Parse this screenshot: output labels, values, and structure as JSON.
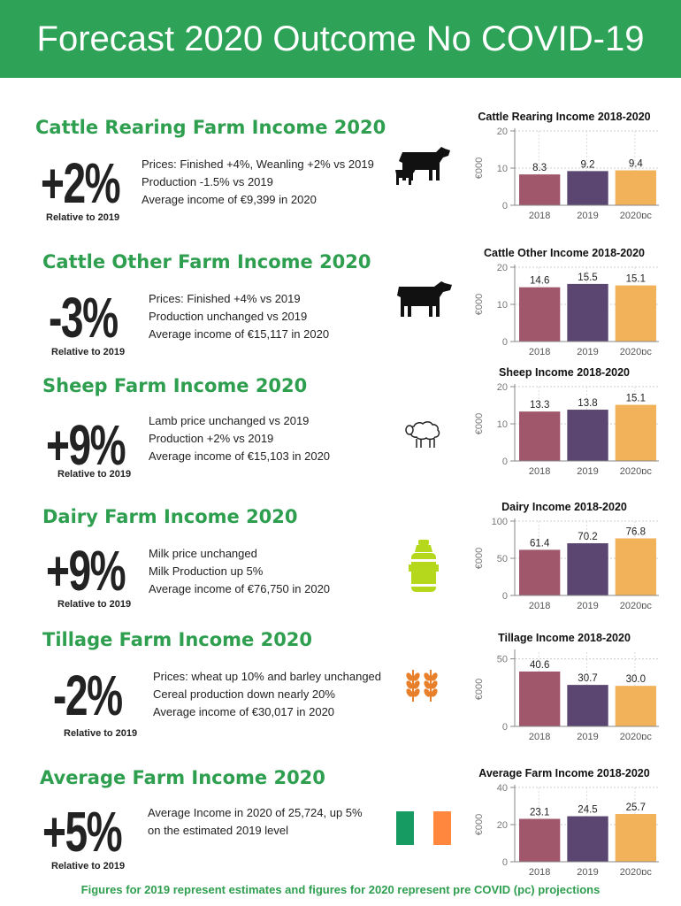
{
  "header": {
    "title": "Forecast 2020 Outcome No COVID-19"
  },
  "sections": [
    {
      "title": "Cattle Rearing Farm Income 2020",
      "change": "+2%",
      "relative": "Relative to 2019",
      "icon": "cow-calf-icon",
      "bullets": [
        "Prices: Finished +4%, Weanling +2% vs 2019",
        "Production -1.5% vs 2019",
        "Average income of €9,399 in 2020"
      ]
    },
    {
      "title": "Cattle Other Farm Income 2020",
      "change": "-3%",
      "relative": "Relative to 2019",
      "icon": "cow-icon",
      "bullets": [
        "Prices: Finished +4% vs 2019",
        "Production unchanged vs 2019",
        "Average income of €15,117 in 2020"
      ]
    },
    {
      "title": "Sheep Farm Income 2020",
      "change": "+9%",
      "relative": "Relative to 2019",
      "icon": "sheep-icon",
      "bullets": [
        "Lamb price unchanged vs 2019",
        "Production +2% vs 2019",
        "Average income of €15,103 in 2020"
      ]
    },
    {
      "title": "Dairy Farm Income 2020",
      "change": "+9%",
      "relative": "Relative to 2019",
      "icon": "milk-churn-icon",
      "bullets": [
        "Milk price unchanged",
        "Milk Production up 5%",
        "Average income of €76,750 in 2020"
      ]
    },
    {
      "title": "Tillage Farm Income 2020",
      "change": "-2%",
      "relative": "Relative to 2019",
      "icon": "wheat-icon",
      "bullets": [
        "Prices: wheat up 10% and barley unchanged",
        "Cereal production down nearly 20%",
        "Average income of €30,017 in 2020"
      ]
    },
    {
      "title": "Average Farm Income 2020",
      "change": "+5%",
      "relative": "Relative to 2019",
      "icon": "irish-flag-icon",
      "bullets": [
        "Average Income in 2020 of 25,724, up 5%",
        "on the estimated 2019 level"
      ]
    }
  ],
  "colors": {
    "bars": [
      "#a0566b",
      "#5a4670",
      "#f2b25a"
    ],
    "green": "#2ea357"
  },
  "chart_data": [
    {
      "type": "bar",
      "title": "Cattle Rearing Income 2018-2020",
      "ylabel": "€000",
      "categories": [
        "2018",
        "2019",
        "2020pc"
      ],
      "values": [
        8.3,
        9.2,
        9.4
      ],
      "labels": [
        "8.3",
        "9.2",
        "9.4"
      ],
      "ylim": [
        0,
        20
      ],
      "ticks": [
        "0",
        "10",
        "20"
      ],
      "tickvals": [
        0,
        10,
        20
      ]
    },
    {
      "type": "bar",
      "title": "Cattle Other Income 2018-2020",
      "ylabel": "€000",
      "categories": [
        "2018",
        "2019",
        "2020pc"
      ],
      "values": [
        14.6,
        15.5,
        15.1
      ],
      "labels": [
        "14.6",
        "15.5",
        "15.1"
      ],
      "ylim": [
        0,
        20
      ],
      "ticks": [
        "0",
        "10",
        "20"
      ],
      "tickvals": [
        0,
        10,
        20
      ]
    },
    {
      "type": "bar",
      "title": "Sheep Income 2018-2020",
      "ylabel": "€000",
      "categories": [
        "2018",
        "2019",
        "2020pc"
      ],
      "values": [
        13.3,
        13.8,
        15.1
      ],
      "labels": [
        "13.3",
        "13.8",
        "15.1"
      ],
      "ylim": [
        0,
        20
      ],
      "ticks": [
        "0",
        "10",
        "20"
      ],
      "tickvals": [
        0,
        10,
        20
      ]
    },
    {
      "type": "bar",
      "title": "Dairy Income 2018-2020",
      "ylabel": "€000",
      "categories": [
        "2018",
        "2019",
        "2020pc"
      ],
      "values": [
        61.4,
        70.2,
        76.8
      ],
      "labels": [
        "61.4",
        "70.2",
        "76.8"
      ],
      "ylim": [
        0,
        100
      ],
      "ticks": [
        "0",
        "50",
        "100"
      ],
      "tickvals": [
        0,
        50,
        100
      ]
    },
    {
      "type": "bar",
      "title": "Tillage Income 2018-2020",
      "ylabel": "€000",
      "categories": [
        "2018",
        "2019",
        "2020pc"
      ],
      "values": [
        40.6,
        30.7,
        30.0
      ],
      "labels": [
        "40.6",
        "30.7",
        "30.0"
      ],
      "ylim": [
        0,
        55
      ],
      "ticks": [
        "0",
        "50"
      ],
      "tickvals": [
        0,
        50
      ]
    },
    {
      "type": "bar",
      "title": "Average Farm Income 2018-2020",
      "ylabel": "€000",
      "categories": [
        "2018",
        "2019",
        "2020pc"
      ],
      "values": [
        23.1,
        24.5,
        25.7
      ],
      "labels": [
        "23.1",
        "24.5",
        "25.7"
      ],
      "ylim": [
        0,
        40
      ],
      "ticks": [
        "0",
        "20",
        "40"
      ],
      "tickvals": [
        0,
        20,
        40
      ]
    }
  ],
  "footer": {
    "text": "Figures for 2019 represent estimates and figures for 2020 represent pre COVID (pc) projections"
  }
}
